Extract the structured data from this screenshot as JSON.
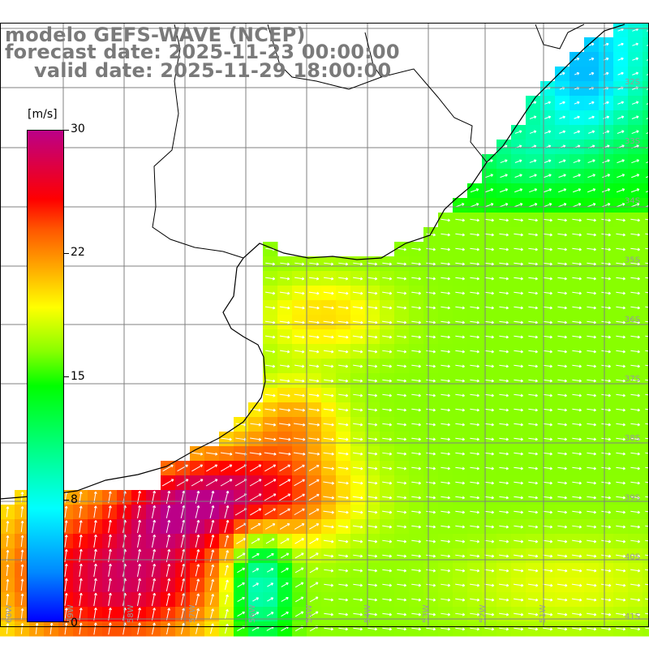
{
  "title": {
    "line1": "modelo GEFS-WAVE (NCEP)",
    "line2": "forecast date: 2025-11-23 00:00:00",
    "line3": "valid date: 2025-11-29 18:00:00"
  },
  "colorbar": {
    "unit": "[m/s]",
    "ticks": [
      "30",
      "22",
      "15",
      "8",
      "0"
    ],
    "colors": [
      "#0000ff",
      "#00ffff",
      "#00ff00",
      "#ffff00",
      "#ff0000",
      "#bb0088"
    ]
  },
  "map": {
    "lat_labels": [
      "32S",
      "33S",
      "34S",
      "35S",
      "36S",
      "37S",
      "38S",
      "39S",
      "40S",
      "41S"
    ],
    "lon_labels": [
      "60W",
      "59W",
      "58W",
      "57W",
      "56W",
      "55W",
      "54W",
      "53W",
      "52W",
      "51W"
    ],
    "variable": "wind speed with direction arrows",
    "land_color": "#ffffff",
    "coast_color": "#000000",
    "grid_color": "#808080"
  }
}
